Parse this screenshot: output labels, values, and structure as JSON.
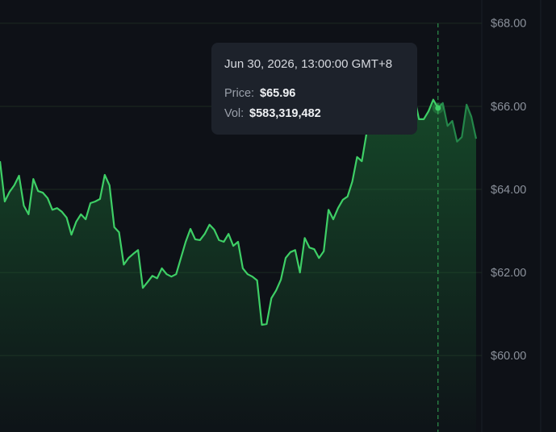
{
  "chart_data": {
    "type": "area",
    "values": [
      64.68,
      63.71,
      63.94,
      64.1,
      64.33,
      63.61,
      63.4,
      64.25,
      63.96,
      63.92,
      63.79,
      63.51,
      63.55,
      63.46,
      63.32,
      62.91,
      63.22,
      63.4,
      63.28,
      63.67,
      63.71,
      63.77,
      64.35,
      64.1,
      63.09,
      62.97,
      62.19,
      62.35,
      62.45,
      62.54,
      61.63,
      61.77,
      61.92,
      61.86,
      62.1,
      61.96,
      61.9,
      61.96,
      62.35,
      62.74,
      63.05,
      62.8,
      62.78,
      62.93,
      63.15,
      63.03,
      62.78,
      62.74,
      62.93,
      62.64,
      62.74,
      62.1,
      61.96,
      61.9,
      61.81,
      60.74,
      60.76,
      61.38,
      61.57,
      61.83,
      62.35,
      62.49,
      62.54,
      62.0,
      62.83,
      62.6,
      62.56,
      62.35,
      62.51,
      63.51,
      63.28,
      63.55,
      63.75,
      63.83,
      64.19,
      64.78,
      64.68,
      65.36,
      65.75,
      66.04,
      66.14,
      66.08,
      66.0,
      66.04,
      66.08,
      66.23,
      66.19,
      66.23,
      65.69,
      65.69,
      65.88,
      66.16,
      65.96,
      66.08,
      65.53,
      65.65,
      65.15,
      65.26,
      66.04,
      65.75,
      65.22
    ],
    "color": "#3ecf66",
    "ylim": [
      58.16,
      68.56
    ],
    "yticks": [
      {
        "value": 60,
        "label": "$60.00"
      },
      {
        "value": 62,
        "label": "$62.00"
      },
      {
        "value": 64,
        "label": "$64.00"
      },
      {
        "value": 66,
        "label": "$66.00"
      },
      {
        "value": 68,
        "label": "$68.00"
      }
    ],
    "grid": true,
    "tooltip": {
      "title": "Jun 30, 2026, 13:00:00 GMT+8",
      "price_name": "Price:",
      "price": 65.96,
      "price_label": "$65.96",
      "vol_name": "Vol:",
      "vol_label": "$583,319,482"
    }
  }
}
